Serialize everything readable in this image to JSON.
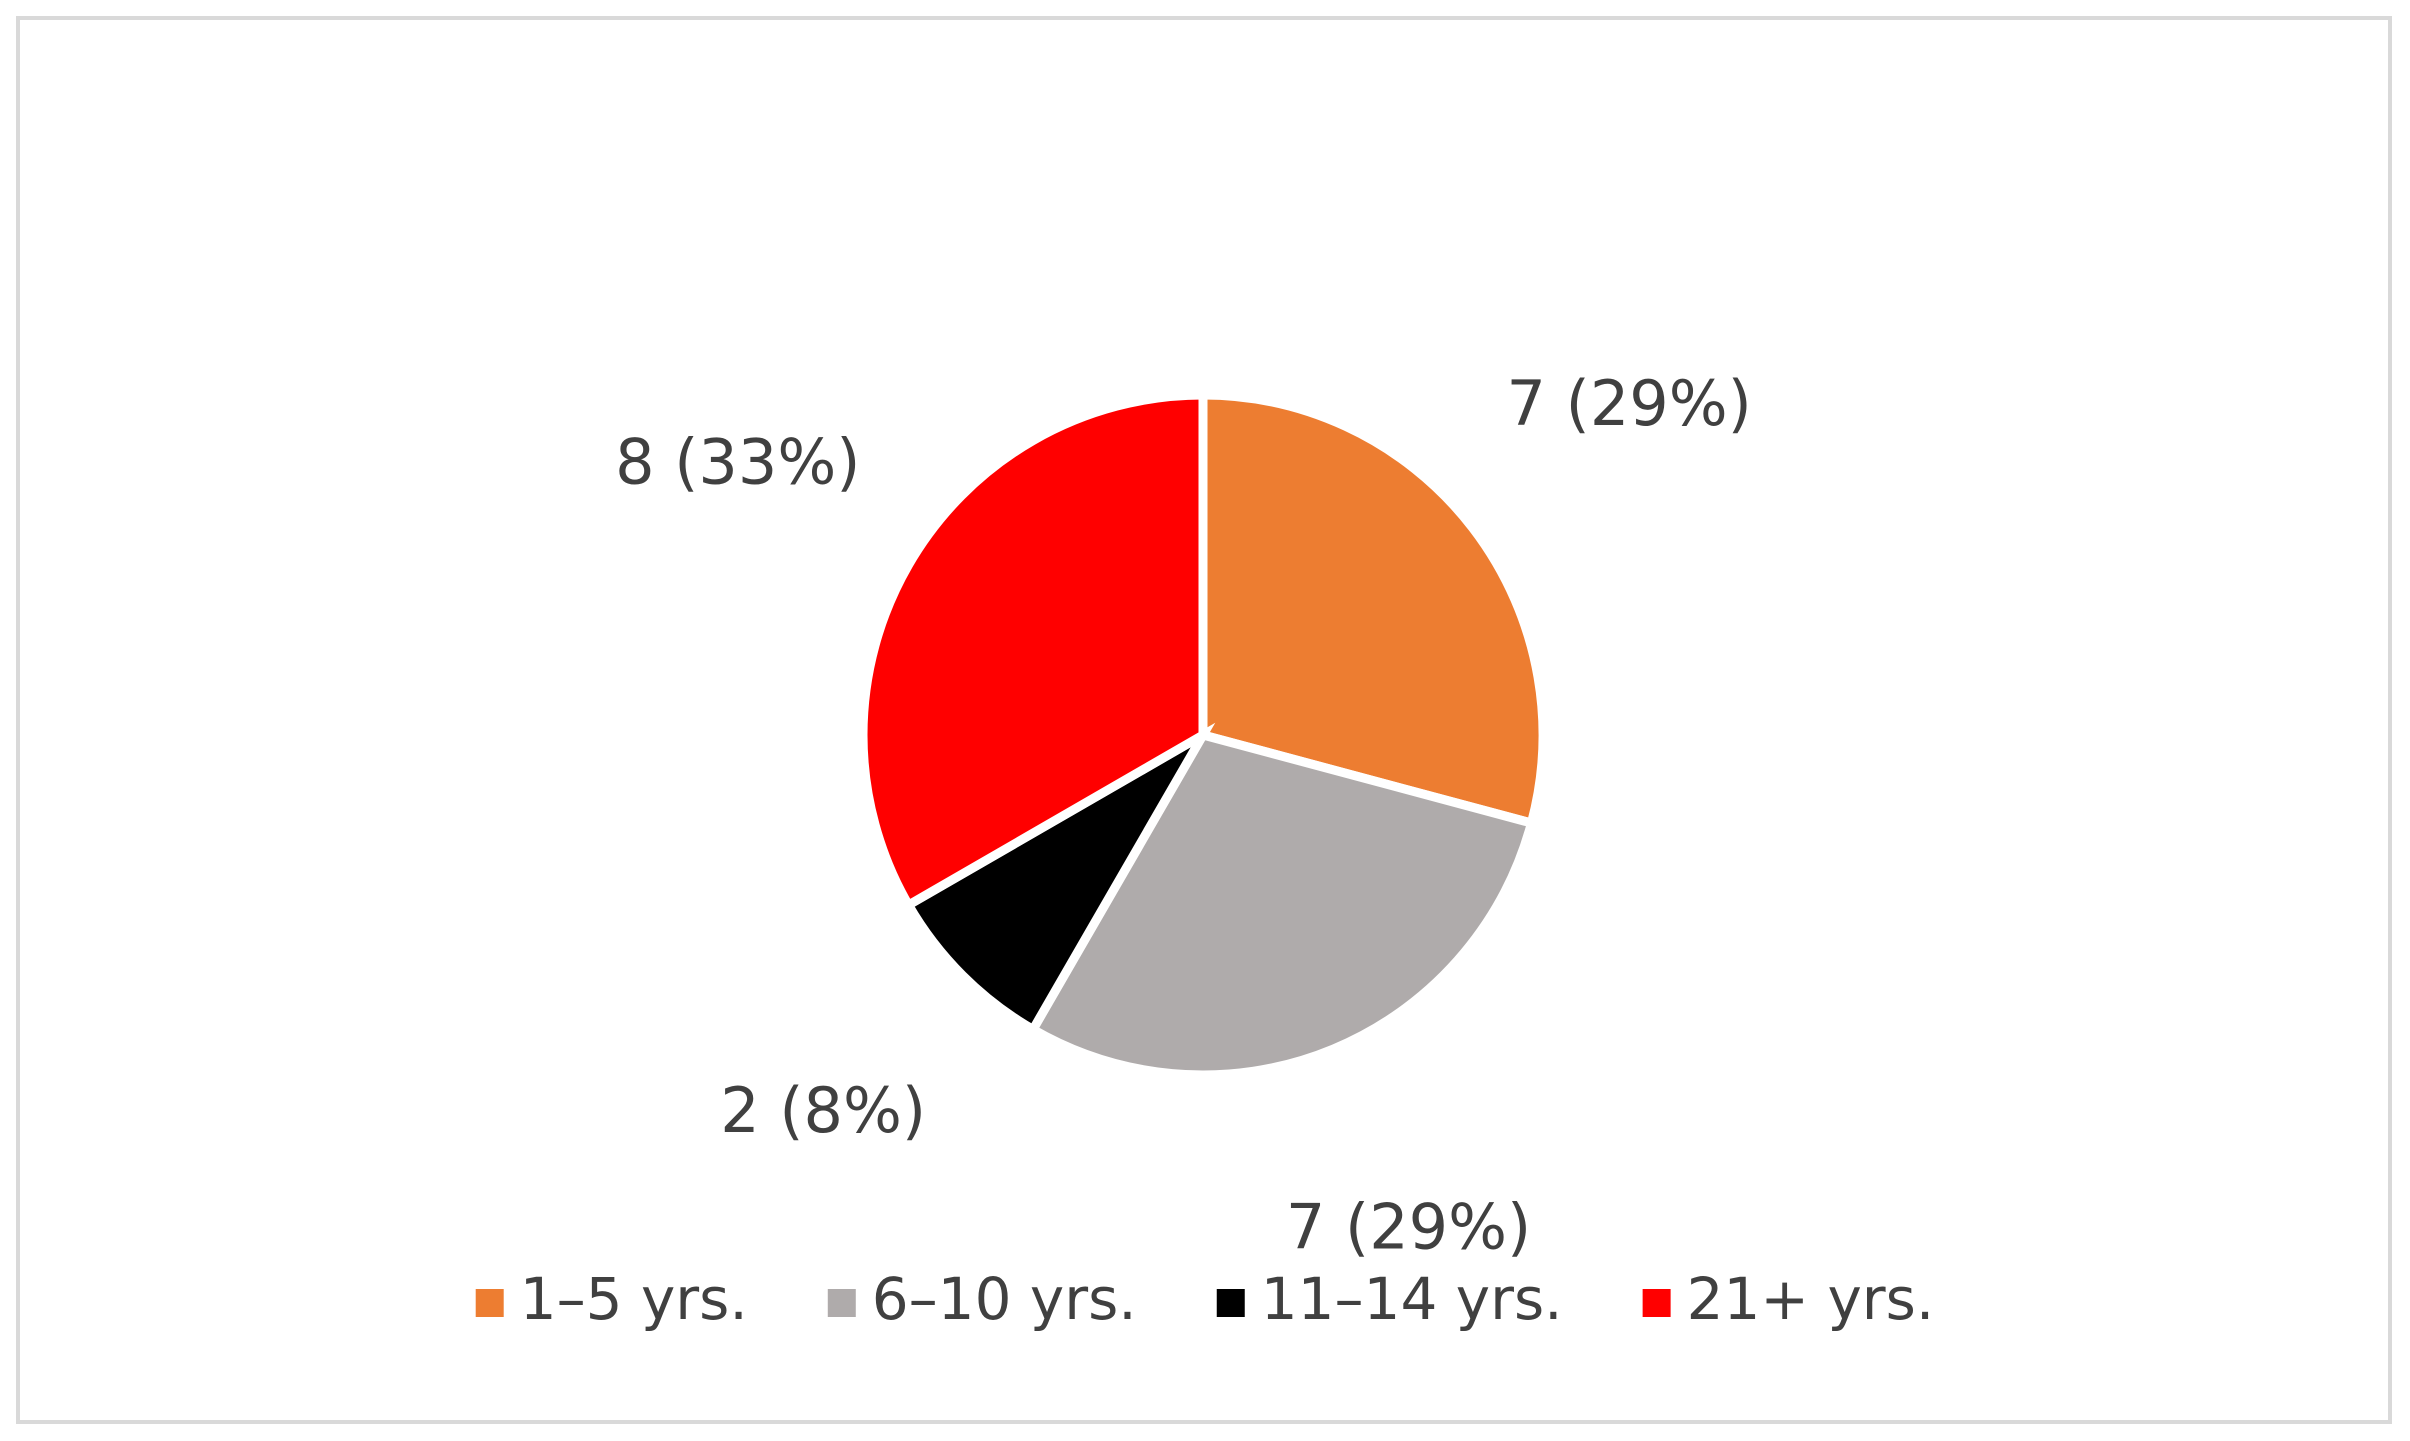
{
  "chart_data": {
    "type": "pie",
    "categories": [
      "1–5 yrs.",
      "6–10 yrs.",
      "11–14 yrs.",
      "21+ yrs."
    ],
    "values": [
      7,
      7,
      2,
      8
    ],
    "value_labels": [
      "7 (29%)",
      "7 (29%)",
      "2 (8%)",
      "8 (33%)"
    ],
    "colors": [
      "#ED7D31",
      "#AFABAB",
      "#000000",
      "#FF0000"
    ],
    "legend": "bottom"
  }
}
